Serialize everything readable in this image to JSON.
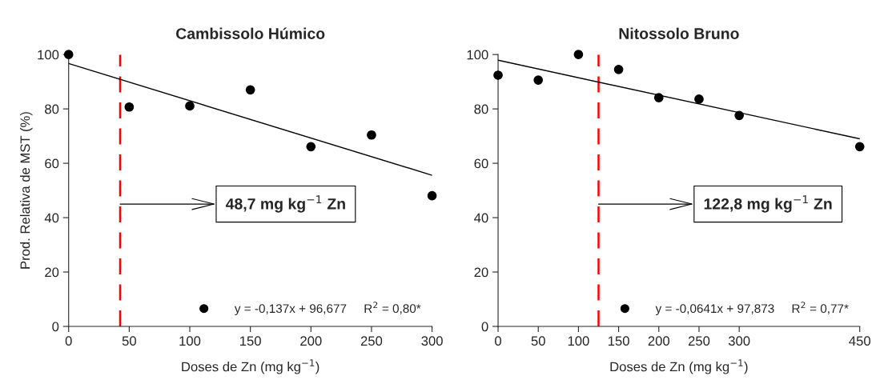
{
  "chart_data": [
    {
      "type": "scatter",
      "title": "Cambissolo Húmico",
      "xlabel": "Doses de Zn (mg kg$^{−1}$)",
      "ylabel": "Prod. Relativa de MST (%)",
      "x": [
        0,
        50,
        100,
        150,
        200,
        250,
        300
      ],
      "series": [
        {
          "name": "y = -0,137x + 96,677     R$^{2}$ = 0,80*",
          "color": "#000000",
          "marker": "circle",
          "values": [
            100,
            80.7,
            81.1,
            87.0,
            66.1,
            70.4,
            48.1
          ]
        },
        {
          "type": "line",
          "color": "#000000",
          "marker": "none",
          "x": [
            0,
            300
          ],
          "values": [
            96.7,
            55.6
          ]
        }
      ],
      "xlim": [
        0,
        300
      ],
      "xticks": [
        0,
        50,
        100,
        150,
        200,
        250,
        300
      ],
      "ylim": [
        0,
        100
      ],
      "yticks": [
        0,
        20,
        40,
        60,
        80,
        100
      ],
      "ref_lines": [
        {
          "axis": "x",
          "value": 42.5,
          "label": "48,7 mg kg$^{−1}$ Zn",
          "color": "#ff0000",
          "line_style": "dashed"
        }
      ],
      "grid": false,
      "legend": "bottom right"
    },
    {
      "type": "scatter",
      "title": "Nitossolo Bruno",
      "xlabel": "Doses de Zn (mg kg$^{−1}$)",
      "x": [
        0,
        50,
        100,
        150,
        200,
        250,
        300,
        450
      ],
      "series": [
        {
          "name": "y = -0,0641x + 97,873     R$^{2}$ = 0,77*",
          "color": "#000000",
          "marker": "circle",
          "values": [
            92.4,
            90.6,
            100,
            94.5,
            84.1,
            83.6,
            77.6,
            66.1
          ]
        },
        {
          "type": "line",
          "color": "#000000",
          "marker": "none",
          "x": [
            0,
            450
          ],
          "values": [
            97.9,
            69.0
          ]
        }
      ],
      "xlim": [
        0,
        450
      ],
      "xticks": [
        0,
        50,
        100,
        150,
        200,
        250,
        300,
        450
      ],
      "ylim": [
        0,
        100
      ],
      "yticks": [
        0,
        20,
        40,
        60,
        80,
        100
      ],
      "ref_lines": [
        {
          "axis": "x",
          "value": 125,
          "label": "122,8 mg kg$^{−1}$ Zn",
          "color": "#ff0000",
          "line_style": "dashed"
        }
      ],
      "grid": false,
      "legend": "bottom right"
    }
  ]
}
